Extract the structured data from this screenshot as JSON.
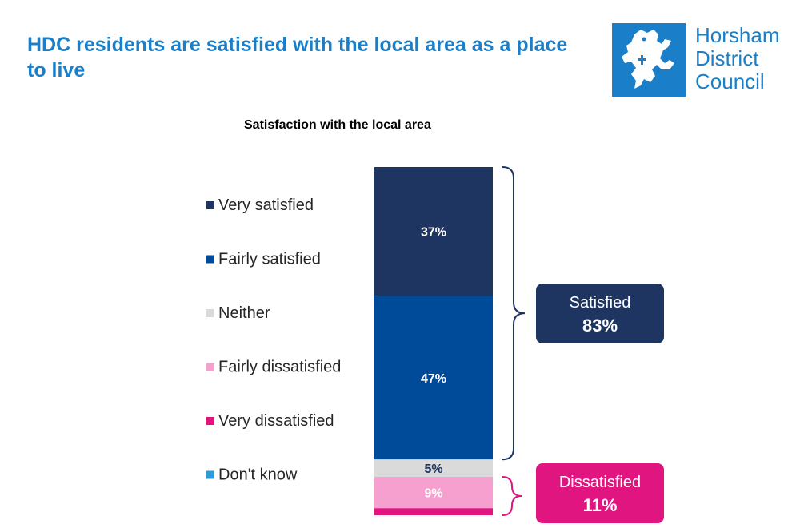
{
  "header": {
    "title": "HDC residents are satisfied with the local area as a place to live"
  },
  "logo": {
    "lines": [
      "Horsham",
      "District",
      "Council"
    ],
    "color": "#1a7fc8"
  },
  "chart_data": {
    "type": "bar",
    "stacked": true,
    "unit": "%",
    "title": "Satisfaction with the local area",
    "series": [
      {
        "name": "Very satisfied",
        "value": 37,
        "label": "37%",
        "color": "#1f3561",
        "label_color": "#ffffff"
      },
      {
        "name": "Fairly satisfied",
        "value": 47,
        "label": "47%",
        "color": "#004a9a",
        "label_color": "#ffffff"
      },
      {
        "name": "Neither",
        "value": 5,
        "label": "5%",
        "color": "#dadada",
        "label_color": "#1f3561"
      },
      {
        "name": "Fairly dissatisfied",
        "value": 9,
        "label": "9%",
        "color": "#f5a0cf",
        "label_color": "#ffffff"
      },
      {
        "name": "Very dissatisfied",
        "value": 2,
        "label": "",
        "color": "#e0157f",
        "label_color": "#ffffff"
      },
      {
        "name": "Don't know",
        "value": 0,
        "label": "",
        "color": "#2f9ad6",
        "label_color": "#ffffff"
      }
    ],
    "groups": [
      {
        "name": "Satisfied",
        "value_label": "83%",
        "from": 0,
        "to": 1,
        "color": "#1f3561"
      },
      {
        "name": "Dissatisfied",
        "value_label": "11%",
        "from": 3,
        "to": 4,
        "color": "#e0157f"
      }
    ],
    "legend_position": "left",
    "grid": false
  }
}
